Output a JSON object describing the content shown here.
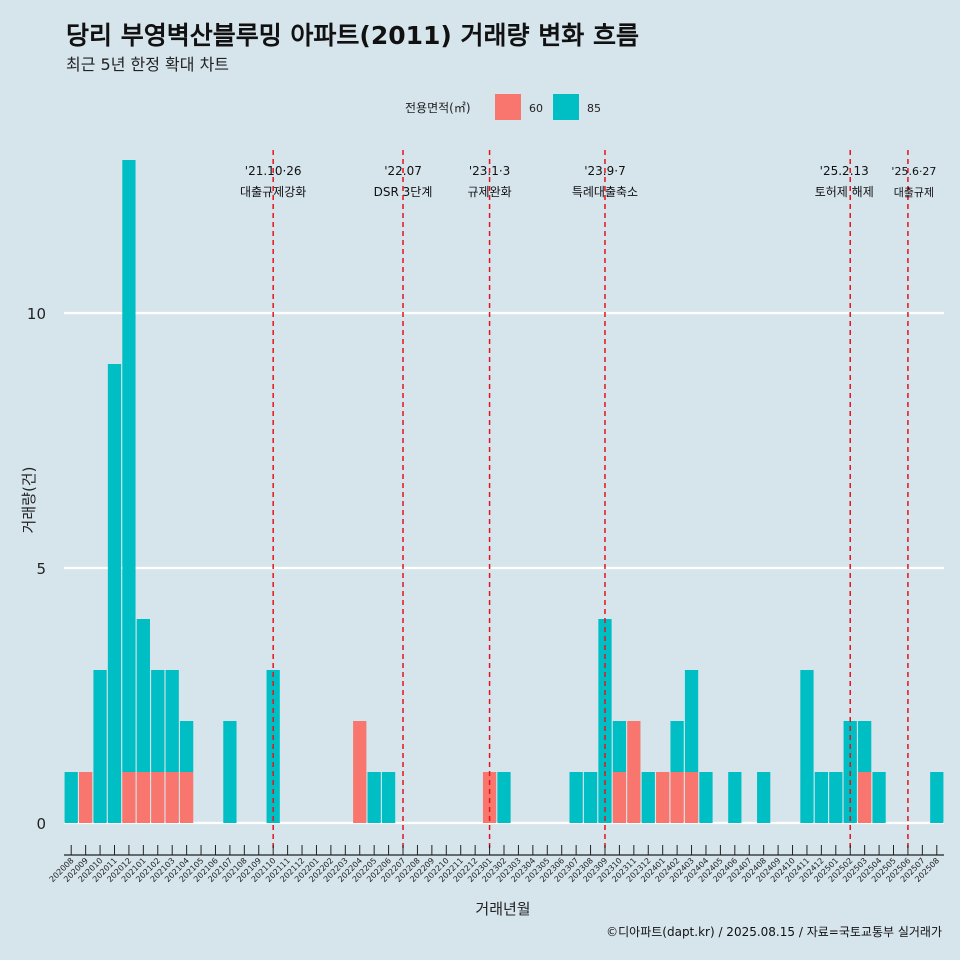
{
  "title": "당리 부영벽산블루밍 아파트(2011) 거래량 변화 흐름",
  "subtitle": "최근 5년 한정 확대 차트",
  "caption": "©디아파트(dapt.kr) / 2025.08.15 / 자료=국토교통부 실거래가",
  "legend": {
    "title": "전용면적(㎡)",
    "items": [
      {
        "label": "60",
        "color": "#f8766d"
      },
      {
        "label": "85",
        "color": "#00bfc4"
      }
    ]
  },
  "chart_data": {
    "type": "bar",
    "stacked": true,
    "xlabel": "거래년월",
    "ylabel": "거래량(건)",
    "ylim": [
      0,
      12
    ],
    "yticks": [
      0,
      5,
      10
    ],
    "legend_position": "top",
    "categories": [
      "202008",
      "202009",
      "202010",
      "202011",
      "202012",
      "202101",
      "202102",
      "202103",
      "202104",
      "202105",
      "202106",
      "202107",
      "202108",
      "202109",
      "202110",
      "202111",
      "202112",
      "202201",
      "202202",
      "202203",
      "202204",
      "202205",
      "202206",
      "202207",
      "202208",
      "202209",
      "202210",
      "202211",
      "202212",
      "202301",
      "202302",
      "202303",
      "202304",
      "202305",
      "202306",
      "202307",
      "202308",
      "202309",
      "202310",
      "202311",
      "202312",
      "202401",
      "202402",
      "202403",
      "202404",
      "202405",
      "202406",
      "202407",
      "202408",
      "202409",
      "202410",
      "202411",
      "202412",
      "202501",
      "202502",
      "202503",
      "202504",
      "202505",
      "202506",
      "202507",
      "202508"
    ],
    "series": [
      {
        "name": "60",
        "color": "#f8766d",
        "values": [
          0,
          1,
          0,
          0,
          1,
          1,
          1,
          1,
          1,
          0,
          0,
          0,
          0,
          0,
          0,
          0,
          0,
          0,
          0,
          0,
          2,
          0,
          0,
          0,
          0,
          0,
          0,
          0,
          0,
          1,
          0,
          0,
          0,
          0,
          0,
          0,
          0,
          0,
          1,
          2,
          0,
          1,
          1,
          1,
          0,
          0,
          0,
          0,
          0,
          0,
          0,
          0,
          0,
          0,
          0,
          1,
          0,
          0,
          0,
          0,
          0
        ]
      },
      {
        "name": "85",
        "color": "#00bfc4",
        "values": [
          1,
          0,
          3,
          9,
          12,
          3,
          2,
          2,
          1,
          0,
          0,
          2,
          0,
          0,
          3,
          0,
          0,
          0,
          0,
          0,
          0,
          1,
          1,
          0,
          0,
          0,
          0,
          0,
          0,
          0,
          1,
          0,
          0,
          0,
          0,
          1,
          1,
          4,
          1,
          0,
          1,
          0,
          1,
          2,
          1,
          0,
          1,
          0,
          1,
          0,
          0,
          3,
          1,
          1,
          2,
          1,
          1,
          0,
          0,
          0,
          1
        ]
      }
    ],
    "events": [
      {
        "date": "'21.10·26",
        "label": "대출규제강화",
        "category": "202110"
      },
      {
        "date": "'22.07",
        "label": "DSR 3단계",
        "category": "202207"
      },
      {
        "date": "'23.1·3",
        "label": "규제완화",
        "category": "202301"
      },
      {
        "date": "'23.9·7",
        "label": "특례대출축소",
        "category": "202309"
      },
      {
        "date": "'25.2.13",
        "label": "토허제 해제",
        "category": "202502"
      },
      {
        "date": "'25.6·27",
        "label": "대출규제",
        "category": "202506"
      }
    ]
  }
}
